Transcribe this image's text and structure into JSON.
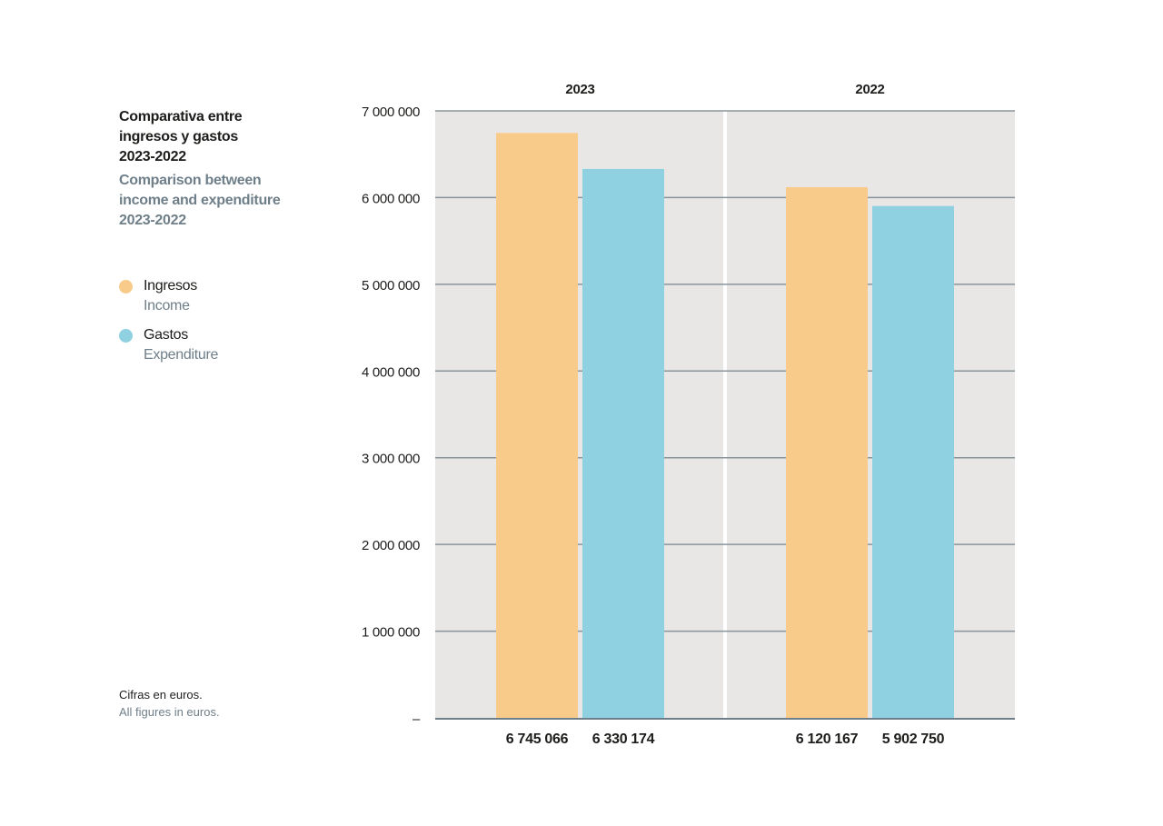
{
  "chart_data": {
    "type": "bar",
    "title_es": "Comparativa entre\ningresos y gastos\n2023-2022",
    "title_en": "Comparison between\nincome and expenditure\n2023-2022",
    "categories": [
      "2023",
      "2022"
    ],
    "series": [
      {
        "name": "Ingresos",
        "name_en": "Income",
        "color": "#f9cb8b",
        "values": [
          6745066,
          6120167
        ],
        "labels": [
          "6 745 066",
          "6 120 167"
        ]
      },
      {
        "name": "Gastos",
        "name_en": "Expenditure",
        "color": "#8fd1e1",
        "values": [
          6330174,
          5902750
        ],
        "labels": [
          "6 330 174",
          "5 902 750"
        ]
      }
    ],
    "ylim": [
      0,
      7000000
    ],
    "yticks": [
      {
        "value": 0,
        "label": "–"
      },
      {
        "value": 1000000,
        "label": "1 000 000"
      },
      {
        "value": 2000000,
        "label": "2 000 000"
      },
      {
        "value": 3000000,
        "label": "3 000 000"
      },
      {
        "value": 4000000,
        "label": "4 000 000"
      },
      {
        "value": 5000000,
        "label": "5 000 000"
      },
      {
        "value": 6000000,
        "label": "6 000 000"
      },
      {
        "value": 7000000,
        "label": "7 000 000"
      }
    ],
    "grid": true,
    "legend_position": "left",
    "note_es": "Cifras en euros.",
    "note_en": "All figures in euros.",
    "colors": {
      "panel": "#e8e7e5",
      "grid": "#8a959b",
      "baseline": "#6f7f89",
      "secondary_text": "#6f7f89"
    }
  }
}
